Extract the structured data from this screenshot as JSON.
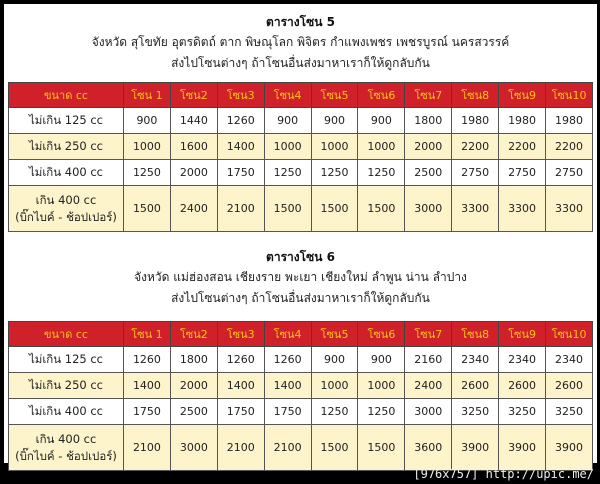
{
  "tables": [
    {
      "title": "ตารางโซน 5",
      "provinces": "จังหวัด สุโขทัย อุตรดิตถ์ ตาก พิษณุโลก พิจิตร กำแพงเพชร เพชรบูรณ์ นครสวรรค์",
      "note": "ส่งไปโซนต่างๆ ถ้าโซนอื่นส่งมาหาเราก็ให้ดูกลับกัน",
      "headers": [
        "ขนาด cc",
        "โซน 1",
        "โซน2",
        "โซน3",
        "โซน4",
        "โซน5",
        "โซน6",
        "โซน7",
        "โซน8",
        "โซน9",
        "โซน10"
      ],
      "rows": [
        {
          "label": [
            "ไม่เกิน 125 cc"
          ],
          "values": [
            900,
            1440,
            1260,
            900,
            900,
            900,
            1800,
            1980,
            1980,
            1980
          ]
        },
        {
          "label": [
            "ไม่เกิน 250 cc"
          ],
          "values": [
            1000,
            1600,
            1400,
            1000,
            1000,
            1000,
            2000,
            2200,
            2200,
            2200
          ]
        },
        {
          "label": [
            "ไม่เกิน 400 cc"
          ],
          "values": [
            1250,
            2000,
            1750,
            1250,
            1250,
            1250,
            2500,
            2750,
            2750,
            2750
          ]
        },
        {
          "label": [
            "เกิน 400 cc",
            "(บิ๊กไบค์ - ช้อปเปอร์)"
          ],
          "values": [
            1500,
            2400,
            2100,
            1500,
            1500,
            1500,
            3000,
            3300,
            3300,
            3300
          ]
        }
      ]
    },
    {
      "title": "ตารางโซน 6",
      "provinces": "จังหวัด แม่ฮ่องสอน เชียงราย พะเยา เชียงใหม่ ลำพูน น่าน ลำปาง",
      "note": "ส่งไปโซนต่างๆ ถ้าโซนอื่นส่งมาหาเราก็ให้ดูกลับกัน",
      "headers": [
        "ขนาด cc",
        "โซน 1",
        "โซน2",
        "โซน3",
        "โซน4",
        "โซน5",
        "โซน6",
        "โซน7",
        "โซน8",
        "โซน9",
        "โซน10"
      ],
      "rows": [
        {
          "label": [
            "ไม่เกิน 125 cc"
          ],
          "values": [
            1260,
            1800,
            1260,
            1260,
            900,
            900,
            2160,
            2340,
            2340,
            2340
          ]
        },
        {
          "label": [
            "ไม่เกิน 250 cc"
          ],
          "values": [
            1400,
            2000,
            1400,
            1400,
            1000,
            1000,
            2400,
            2600,
            2600,
            2600
          ]
        },
        {
          "label": [
            "ไม่เกิน 400 cc"
          ],
          "values": [
            1750,
            2500,
            1750,
            1750,
            1250,
            1250,
            3000,
            3250,
            3250,
            3250
          ]
        },
        {
          "label": [
            "เกิน 400 cc",
            "(บิ๊กไบค์ - ช้อปเปอร์)"
          ],
          "values": [
            2100,
            3000,
            2100,
            2100,
            1500,
            1500,
            3600,
            3900,
            3900,
            3900
          ]
        }
      ]
    }
  ],
  "watermark": "[976x757] http://upic.me/",
  "colors": {
    "header_bg": "#d0202a",
    "header_text": "#f7c51a",
    "alt_row": "#fdf4cc"
  }
}
